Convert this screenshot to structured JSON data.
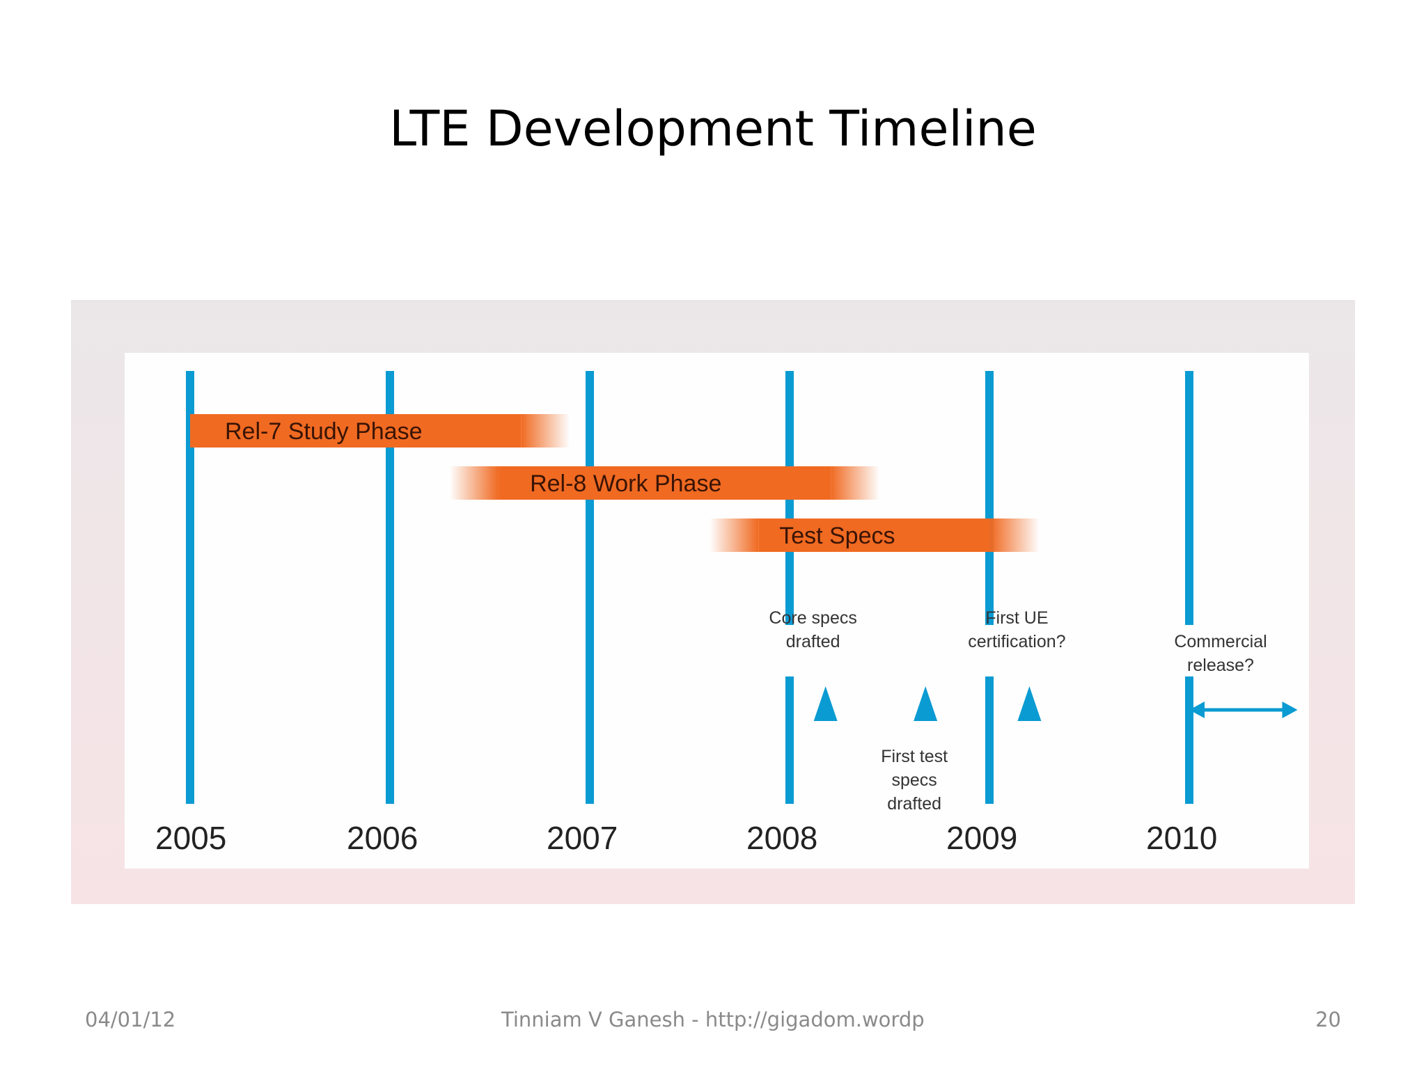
{
  "slide": {
    "title": "LTE Development Timeline",
    "footer": {
      "date": "04/01/12",
      "author": "Tinniam V Ganesh - http://gigadom.wordpress.com",
      "page": "20"
    }
  },
  "diagram": {
    "colors": {
      "year_line": "#0a9bd2",
      "bar": "#f06a22",
      "marker": "#0a9bd2",
      "panel": "#f2e6e8"
    },
    "years": [
      "2005",
      "2006",
      "2007",
      "2008",
      "2009",
      "2010"
    ],
    "phases": [
      {
        "label": "Rel-7 Study Phase",
        "start": 2005.0,
        "end": 2006.9,
        "fade_start": false
      },
      {
        "label": "Rel-8 Work Phase",
        "start": 2006.3,
        "end": 2008.45,
        "fade_start": true
      },
      {
        "label": "Test Specs",
        "start": 2007.6,
        "end": 2009.25,
        "fade_start": true
      }
    ],
    "milestones": [
      {
        "label_lines": [
          "Core specs",
          "drafted"
        ],
        "at": 2008.18,
        "label_position": "above"
      },
      {
        "label_lines": [
          "First test",
          "specs",
          "drafted"
        ],
        "at": 2008.68,
        "label_position": "below"
      },
      {
        "label_lines": [
          "First UE",
          "certification?"
        ],
        "at": 2009.2,
        "label_position": "above"
      }
    ],
    "release_window": {
      "label_lines": [
        "Commercial",
        "release?"
      ],
      "start": 2010.0,
      "end": 2010.5
    }
  }
}
